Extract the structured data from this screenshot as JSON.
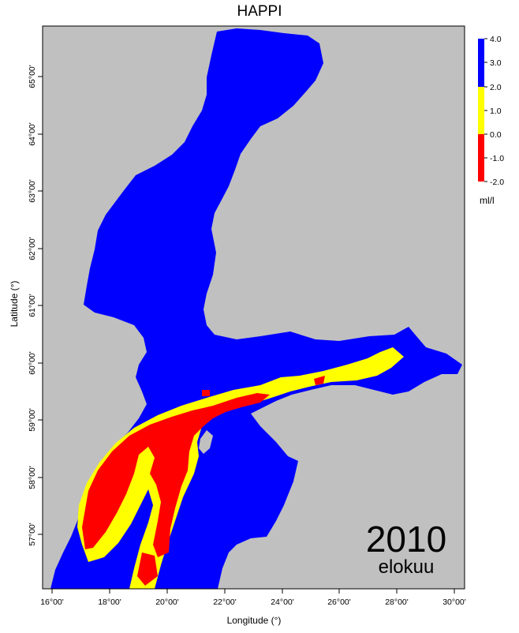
{
  "title": "HAPPI",
  "x_axis_label": "Longitude (°)",
  "y_axis_label": "Latitude (°)",
  "x_ticks": [
    "16°00'",
    "18°00'",
    "20°00'",
    "22°00'",
    "24°00'",
    "26°00'",
    "28°00'",
    "30°00'"
  ],
  "y_ticks": [
    "57°00'",
    "58°00'",
    "59°00'",
    "60°00'",
    "61°00'",
    "62°00'",
    "63°00'",
    "64°00'",
    "65°00'"
  ],
  "legend": {
    "labels": [
      "4.0",
      "3.0",
      "2.0",
      "1.0",
      "0.0",
      "-1.0",
      "-2.0"
    ],
    "unit": "ml/l",
    "bins": [
      {
        "from": 2.0,
        "to": 4.0,
        "color": "#0000ff"
      },
      {
        "from": 0.0,
        "to": 2.0,
        "color": "#ffff00"
      },
      {
        "from": -2.0,
        "to": 0.0,
        "color": "#ff0000"
      }
    ]
  },
  "colors": {
    "land": "#c0c0c0",
    "high_oxygen": "#0000ff",
    "medium_oxygen": "#ffff00",
    "low_oxygen": "#ff0000"
  },
  "year": "2010",
  "month": "elokuu"
}
